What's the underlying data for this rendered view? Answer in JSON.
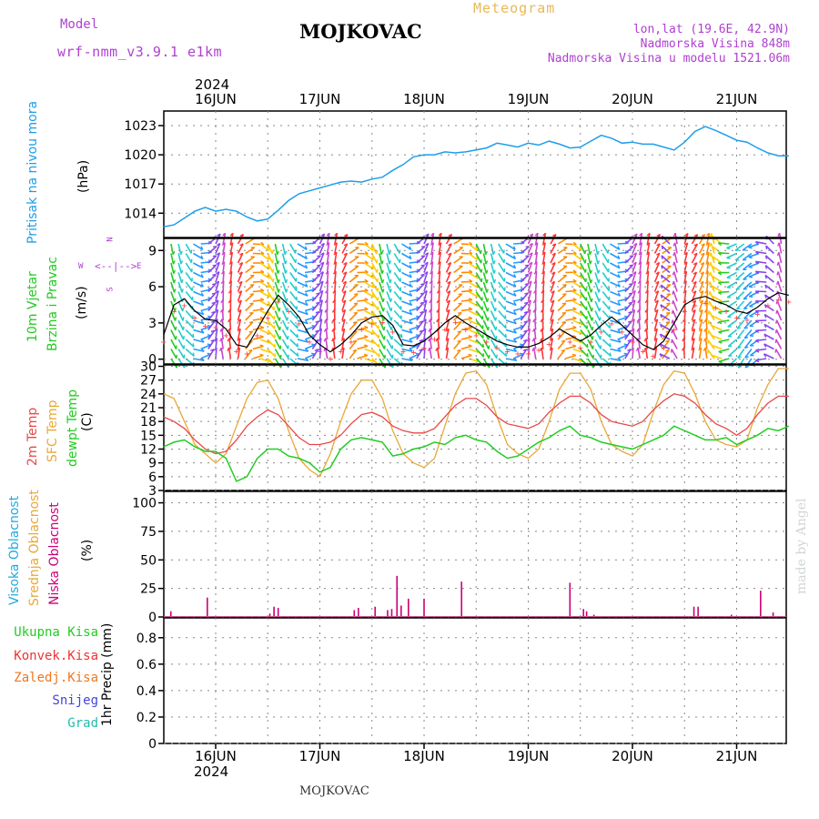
{
  "header": {
    "model_label": "Model",
    "model_name": "wrf-nmm_v3.9.1 e1km",
    "station": "MOJKOVAC",
    "product": "Meteogram",
    "lonlat": "lon,lat (19.6E, 42.9N)",
    "elevation": "Nadmorska Visina 848m",
    "model_elevation": "Nadmorska Visina u modelu 1521.06m",
    "footer_station": "MOJKOVAC",
    "credit": "made by Angel",
    "year_top": "2024",
    "year_bottom": "2024"
  },
  "days": [
    "16JUN",
    "17JUN",
    "18JUN",
    "19JUN",
    "20JUN",
    "21JUN"
  ],
  "panels": {
    "pressure": {
      "label": "Pritisak na nivou mora",
      "unit": "(hPa)",
      "ticks": [
        "1014",
        "1017",
        "1020",
        "1023"
      ]
    },
    "wind": {
      "label1": "10m Vjetar",
      "label2": "Brzina i Pravac",
      "unit": "(m/s)",
      "ticks": [
        "0",
        "3",
        "6",
        "9"
      ],
      "compass": {
        "n": "N",
        "s": "S",
        "e": "E",
        "w": "W"
      }
    },
    "temp": {
      "label1": "2m Temp",
      "label2": "SFC Temp",
      "label3": "dewpt Temp",
      "unit": "(C)",
      "ticks": [
        "3",
        "6",
        "9",
        "12",
        "15",
        "18",
        "21",
        "24",
        "27",
        "30"
      ]
    },
    "cloud": {
      "label1": "Visoka Oblacnost",
      "label2": "Srednja Oblacnost",
      "label3": "Niska Oblacnost",
      "unit": "(%)",
      "ticks": [
        "0",
        "25",
        "50",
        "75",
        "100"
      ]
    },
    "precip": {
      "unit": "1hr Precip (mm)",
      "ticks": [
        "0",
        "0.2",
        "0.4",
        "0.6",
        "0.8"
      ],
      "legend": [
        "Ukupna Kisa",
        "Konvek.Kisa",
        "Zaledj.Kisa",
        "Snijeg",
        "Grad"
      ]
    }
  },
  "colors": {
    "pressure": "#1e9ee8",
    "t2m": "#e84848",
    "tsfc": "#e8a838",
    "dewpt": "#22cc22",
    "wind_speed": "#000000",
    "gust_marks": "#ff4444",
    "low_cloud": "#cc0077",
    "model_text": "#b040d0",
    "product_text": "#e8b858",
    "legend_rain": "#22cc22",
    "legend_conv": "#ee3333",
    "legend_frz": "#ee7722",
    "legend_snow": "#4444dd",
    "legend_hail": "#22bbaa"
  },
  "chart_data": [
    {
      "type": "line",
      "title": "Pritisak na nivou mora",
      "ylabel": "(hPa)",
      "ylim": [
        1011.5,
        1024.5
      ],
      "x_unit": "days since 16JUN 00h",
      "x": [
        -0.5,
        -0.4,
        -0.3,
        -0.2,
        -0.1,
        0,
        0.1,
        0.2,
        0.3,
        0.4,
        0.5,
        0.6,
        0.7,
        0.8,
        0.9,
        1,
        1.1,
        1.2,
        1.3,
        1.4,
        1.5,
        1.6,
        1.7,
        1.8,
        1.9,
        2,
        2.1,
        2.2,
        2.3,
        2.4,
        2.5,
        2.6,
        2.7,
        2.8,
        2.9,
        3,
        3.1,
        3.2,
        3.3,
        3.4,
        3.5,
        3.6,
        3.7,
        3.8,
        3.9,
        4,
        4.1,
        4.2,
        4.3,
        4.4,
        4.5,
        4.6,
        4.7,
        4.8,
        4.9,
        5,
        5.1,
        5.2,
        5.3,
        5.4,
        5.5
      ],
      "series": [
        {
          "name": "Pritisak na nivou mora",
          "values": [
            1012.6,
            1012.8,
            1013.5,
            1014.2,
            1014.6,
            1014.2,
            1014.4,
            1014.2,
            1013.6,
            1013.2,
            1013.4,
            1014.3,
            1015.3,
            1016.0,
            1016.3,
            1016.6,
            1016.9,
            1017.2,
            1017.3,
            1017.2,
            1017.5,
            1017.7,
            1018.4,
            1019.0,
            1019.8,
            1020.0,
            1020.0,
            1020.3,
            1020.2,
            1020.3,
            1020.5,
            1020.7,
            1021.2,
            1021.0,
            1020.8,
            1021.2,
            1021.0,
            1021.4,
            1021.1,
            1020.7,
            1020.8,
            1021.4,
            1022.0,
            1021.7,
            1021.2,
            1021.3,
            1021.1,
            1021.1,
            1020.8,
            1020.5,
            1021.3,
            1022.4,
            1022.9,
            1022.5,
            1022.0,
            1021.5,
            1021.3,
            1020.7,
            1020.2,
            1019.9,
            1019.9
          ]
        }
      ]
    },
    {
      "type": "line",
      "title": "10m Vjetar Brzina i Pravac",
      "ylabel": "(m/s)",
      "ylim": [
        -0.4,
        10
      ],
      "x_unit": "days since 16JUN 00h",
      "x": [
        -0.5,
        -0.4,
        -0.3,
        -0.2,
        -0.1,
        0,
        0.1,
        0.2,
        0.3,
        0.4,
        0.5,
        0.6,
        0.7,
        0.8,
        0.9,
        1,
        1.1,
        1.2,
        1.3,
        1.4,
        1.5,
        1.6,
        1.7,
        1.8,
        1.9,
        2,
        2.1,
        2.2,
        2.3,
        2.4,
        2.5,
        2.6,
        2.7,
        2.8,
        2.9,
        3,
        3.1,
        3.2,
        3.3,
        3.4,
        3.5,
        3.6,
        3.7,
        3.8,
        3.9,
        4,
        4.1,
        4.2,
        4.3,
        4.4,
        4.5,
        4.6,
        4.7,
        4.8,
        4.9,
        5,
        5.1,
        5.2,
        5.3,
        5.4,
        5.5
      ],
      "series": [
        {
          "name": "Brzina",
          "values": [
            2.0,
            4.5,
            5.0,
            4.0,
            3.3,
            3.2,
            2.5,
            1.2,
            1.0,
            2.5,
            4.0,
            5.3,
            4.5,
            3.5,
            2.0,
            1.2,
            0.6,
            1.2,
            2.0,
            3.0,
            3.5,
            3.6,
            2.8,
            1.2,
            1.1,
            1.5,
            2.2,
            3.0,
            3.6,
            3.0,
            2.5,
            2.0,
            1.5,
            1.2,
            1.0,
            1.0,
            1.3,
            1.8,
            2.5,
            2.0,
            1.5,
            2.0,
            2.8,
            3.5,
            2.8,
            2.0,
            1.2,
            0.8,
            1.5,
            3.0,
            4.5,
            5.0,
            5.2,
            4.8,
            4.5,
            4.0,
            3.8,
            4.3,
            5.0,
            5.5,
            5.3
          ]
        }
      ]
    },
    {
      "type": "line",
      "title": "2m Temp / SFC Temp / dewpt Temp",
      "ylabel": "(C)",
      "ylim": [
        3,
        30.3
      ],
      "x_unit": "days since 16JUN 00h",
      "x": [
        -0.5,
        -0.4,
        -0.3,
        -0.2,
        -0.1,
        0,
        0.1,
        0.2,
        0.3,
        0.4,
        0.5,
        0.6,
        0.7,
        0.8,
        0.9,
        1,
        1.1,
        1.2,
        1.3,
        1.4,
        1.5,
        1.6,
        1.7,
        1.8,
        1.9,
        2,
        2.1,
        2.2,
        2.3,
        2.4,
        2.5,
        2.6,
        2.7,
        2.8,
        2.9,
        3,
        3.1,
        3.2,
        3.3,
        3.4,
        3.5,
        3.6,
        3.7,
        3.8,
        3.9,
        4,
        4.1,
        4.2,
        4.3,
        4.4,
        4.5,
        4.6,
        4.7,
        4.8,
        4.9,
        5,
        5.1,
        5.2,
        5.3,
        5.4,
        5.5
      ],
      "series": [
        {
          "name": "2m Temp",
          "values": [
            19,
            18,
            16.5,
            14,
            12,
            11,
            11.5,
            14,
            17,
            19,
            20.5,
            19.5,
            17,
            14.5,
            13,
            13,
            13.5,
            15,
            17.5,
            19.5,
            20,
            19,
            17,
            16,
            15.5,
            15.5,
            16.5,
            19,
            21.5,
            23,
            23,
            21.5,
            19,
            17.5,
            17,
            16.5,
            17.5,
            20,
            22,
            23.5,
            23.5,
            22,
            19.5,
            18,
            17.5,
            17,
            18,
            20.5,
            22.5,
            24,
            23.5,
            22,
            19.5,
            17.5,
            16.5,
            15,
            16.5,
            19.5,
            22,
            23.5,
            23.5
          ]
        },
        {
          "name": "SFC Temp",
          "values": [
            24,
            23,
            18,
            13,
            11,
            9,
            11,
            17,
            23,
            26.5,
            27,
            23,
            16,
            10,
            7.5,
            6,
            11,
            18,
            24,
            27,
            27,
            23,
            16,
            11,
            9,
            8,
            10,
            17,
            24,
            28.5,
            29,
            26,
            19,
            13,
            11,
            10,
            12,
            18,
            25,
            28.5,
            28.5,
            25,
            18,
            13,
            11.5,
            10.5,
            13,
            20,
            26,
            29,
            28.5,
            24,
            18,
            14,
            13,
            12.5,
            14,
            21,
            26,
            29.5,
            29.5
          ]
        },
        {
          "name": "dewpt Temp",
          "values": [
            12.5,
            13.5,
            14,
            12.5,
            11.5,
            11.5,
            10,
            5,
            6,
            10,
            12,
            12,
            10.5,
            10,
            9,
            7,
            8,
            12,
            14,
            14.5,
            14,
            13.5,
            10.5,
            11,
            12,
            12.5,
            13.5,
            13,
            14.5,
            15,
            14,
            13.5,
            11.5,
            10,
            10.5,
            12,
            13.5,
            14.5,
            16,
            17,
            15,
            14.5,
            13.5,
            13,
            12.5,
            12,
            13,
            14,
            15,
            17,
            16,
            15,
            14,
            14,
            14.5,
            13,
            14,
            15,
            16.5,
            16,
            17
          ]
        }
      ]
    },
    {
      "type": "bar",
      "title": "Visoka / Srednja / Niska Oblacnost",
      "ylabel": "(%)",
      "ylim": [
        0,
        110
      ],
      "x_unit": "days since 16JUN 00h",
      "series": [
        {
          "name": "Niska Oblacnost",
          "x": [
            -0.43,
            -0.08,
            0.52,
            0.56,
            0.6,
            1.33,
            1.37,
            1.53,
            1.65,
            1.69,
            1.74,
            1.78,
            1.85,
            2.0,
            2.36,
            3.4,
            3.53,
            3.56,
            3.63,
            4.59,
            4.63,
            4.95,
            5.23,
            5.35
          ],
          "values": [
            5,
            17,
            3,
            9,
            8,
            6,
            8,
            9,
            6,
            7,
            36,
            10,
            16,
            16,
            31,
            30,
            7,
            5,
            2,
            9,
            9,
            2,
            23,
            4
          ]
        }
      ]
    },
    {
      "type": "bar",
      "title": "1hr Precip",
      "ylabel": "1hr Precip (mm)",
      "ylim": [
        0,
        0.95
      ],
      "series": [
        {
          "name": "Ukupna Kisa",
          "values": []
        },
        {
          "name": "Konvek.Kisa",
          "values": []
        },
        {
          "name": "Zaledj.Kisa",
          "values": []
        },
        {
          "name": "Snijeg",
          "values": []
        },
        {
          "name": "Grad",
          "values": []
        }
      ]
    }
  ]
}
